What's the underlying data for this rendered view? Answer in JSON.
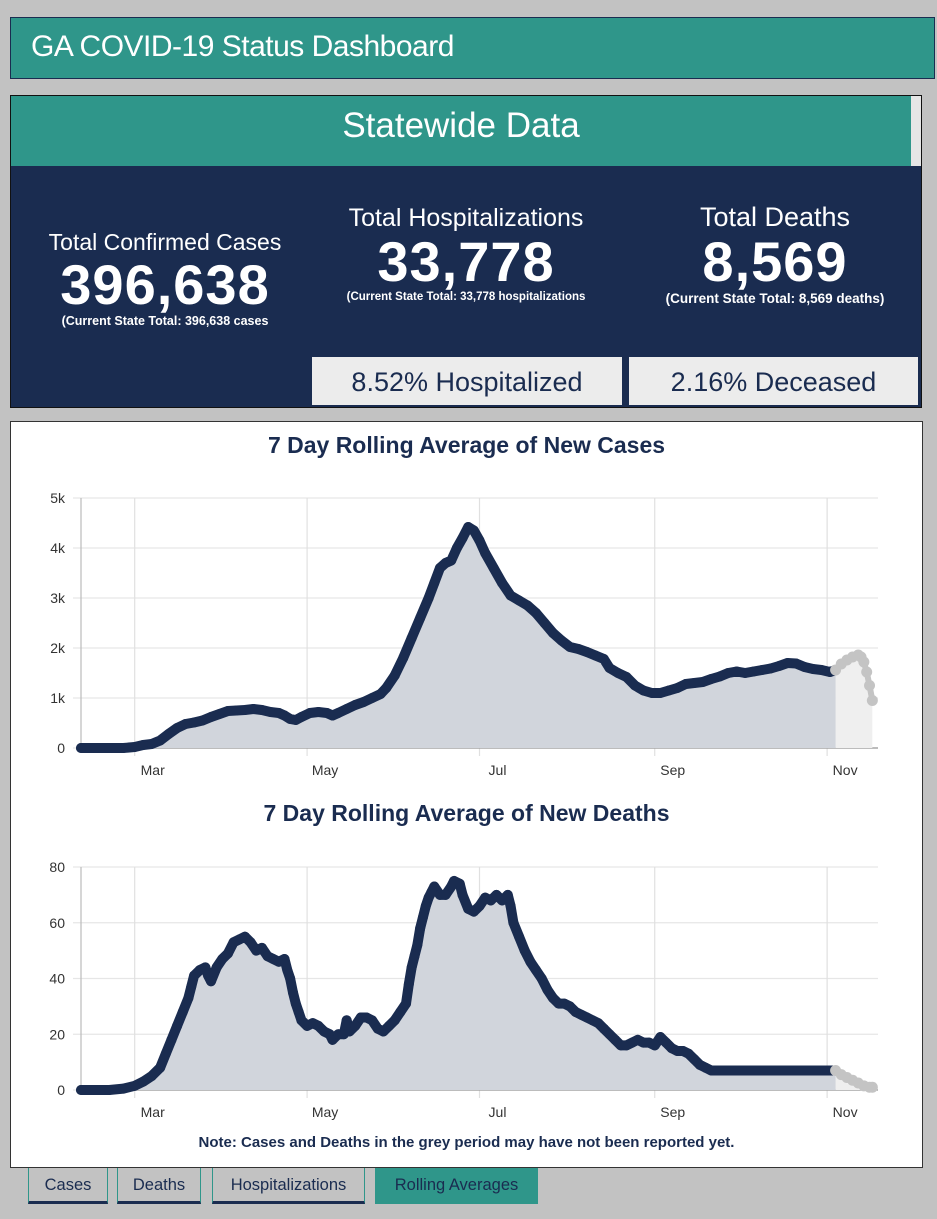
{
  "app": {
    "title": "GA COVID-19 Status Dashboard"
  },
  "statewide": {
    "header": "Statewide Data",
    "cases": {
      "label": "Total Confirmed Cases",
      "value": "396,638",
      "sub": "(Current State Total: 396,638 cases"
    },
    "hospitalizations": {
      "label": "Total Hospitalizations",
      "value": "33,778",
      "sub": "(Current State Total: 33,778 hospitalizations",
      "pct": "8.52% Hospitalized"
    },
    "deaths": {
      "label": "Total Deaths",
      "value": "8,569",
      "sub": "(Current State Total: 8,569 deaths)",
      "pct": "2.16% Deceased"
    }
  },
  "colors": {
    "teal": "#2f968a",
    "navy": "#1a2c50",
    "fill": "#d1d5dc",
    "grey_point": "#c4c4c4",
    "grey_fill": "#efefef"
  },
  "note": "Note: Cases and Deaths in the grey period may have not been reported yet.",
  "tabs": [
    {
      "label": "Cases",
      "active": false
    },
    {
      "label": "Deaths",
      "active": false
    },
    {
      "label": "Hospitalizations",
      "active": false
    },
    {
      "label": "Rolling Averages",
      "active": true
    }
  ],
  "chart_data": [
    {
      "type": "area",
      "title": "7 Day Rolling Average of New Cases",
      "xlabel": "",
      "ylabel": "",
      "x_unit": "days since Feb 10",
      "x_ticks": [
        {
          "label": "Mar",
          "x": 19
        },
        {
          "label": "May",
          "x": 80
        },
        {
          "label": "Jul",
          "x": 141
        },
        {
          "label": "Sep",
          "x": 203
        },
        {
          "label": "Nov",
          "x": 264
        }
      ],
      "xlim": [
        0,
        282
      ],
      "y_ticks": [
        {
          "label": "0",
          "y": 0
        },
        {
          "label": "1k",
          "y": 1000
        },
        {
          "label": "2k",
          "y": 2000
        },
        {
          "label": "3k",
          "y": 3000
        },
        {
          "label": "4k",
          "y": 4000
        },
        {
          "label": "5k",
          "y": 5000
        }
      ],
      "ylim": [
        0,
        5000
      ],
      "grey_period_start": 267,
      "points": [
        [
          0,
          0
        ],
        [
          5,
          0
        ],
        [
          10,
          0
        ],
        [
          15,
          0
        ],
        [
          19,
          20
        ],
        [
          22,
          60
        ],
        [
          25,
          80
        ],
        [
          28,
          150
        ],
        [
          31,
          280
        ],
        [
          34,
          400
        ],
        [
          37,
          480
        ],
        [
          40,
          510
        ],
        [
          43,
          550
        ],
        [
          46,
          620
        ],
        [
          49,
          680
        ],
        [
          52,
          740
        ],
        [
          55,
          750
        ],
        [
          58,
          760
        ],
        [
          61,
          780
        ],
        [
          64,
          760
        ],
        [
          67,
          720
        ],
        [
          70,
          700
        ],
        [
          72,
          650
        ],
        [
          74,
          580
        ],
        [
          76,
          560
        ],
        [
          78,
          620
        ],
        [
          81,
          700
        ],
        [
          84,
          720
        ],
        [
          87,
          700
        ],
        [
          89,
          650
        ],
        [
          91,
          700
        ],
        [
          94,
          780
        ],
        [
          97,
          860
        ],
        [
          100,
          920
        ],
        [
          103,
          1000
        ],
        [
          106,
          1080
        ],
        [
          108,
          1200
        ],
        [
          111,
          1450
        ],
        [
          114,
          1800
        ],
        [
          117,
          2200
        ],
        [
          120,
          2600
        ],
        [
          123,
          3000
        ],
        [
          125,
          3300
        ],
        [
          127,
          3600
        ],
        [
          129,
          3700
        ],
        [
          131,
          3750
        ],
        [
          133,
          4000
        ],
        [
          135,
          4200
        ],
        [
          137,
          4420
        ],
        [
          139,
          4350
        ],
        [
          141,
          4150
        ],
        [
          143,
          3900
        ],
        [
          146,
          3600
        ],
        [
          149,
          3300
        ],
        [
          152,
          3050
        ],
        [
          155,
          2950
        ],
        [
          158,
          2850
        ],
        [
          161,
          2700
        ],
        [
          164,
          2500
        ],
        [
          167,
          2300
        ],
        [
          170,
          2150
        ],
        [
          173,
          2020
        ],
        [
          176,
          1980
        ],
        [
          179,
          1920
        ],
        [
          182,
          1850
        ],
        [
          185,
          1780
        ],
        [
          187,
          1600
        ],
        [
          190,
          1500
        ],
        [
          193,
          1420
        ],
        [
          196,
          1250
        ],
        [
          199,
          1150
        ],
        [
          202,
          1100
        ],
        [
          205,
          1100
        ],
        [
          208,
          1150
        ],
        [
          211,
          1200
        ],
        [
          214,
          1280
        ],
        [
          217,
          1300
        ],
        [
          220,
          1320
        ],
        [
          223,
          1380
        ],
        [
          226,
          1430
        ],
        [
          229,
          1500
        ],
        [
          232,
          1530
        ],
        [
          235,
          1500
        ],
        [
          238,
          1530
        ],
        [
          241,
          1560
        ],
        [
          244,
          1590
        ],
        [
          247,
          1640
        ],
        [
          250,
          1700
        ],
        [
          253,
          1690
        ],
        [
          256,
          1620
        ],
        [
          259,
          1580
        ],
        [
          262,
          1560
        ],
        [
          265,
          1520
        ],
        [
          267,
          1560
        ],
        [
          269,
          1680
        ],
        [
          271,
          1760
        ],
        [
          273,
          1820
        ],
        [
          275,
          1860
        ],
        [
          276,
          1820
        ],
        [
          277,
          1720
        ],
        [
          278,
          1520
        ],
        [
          279,
          1250
        ],
        [
          280,
          950
        ]
      ]
    },
    {
      "type": "area",
      "title": "7 Day Rolling Average of New Deaths",
      "xlabel": "",
      "ylabel": "",
      "x_unit": "days since Feb 10",
      "x_ticks": [
        {
          "label": "Mar",
          "x": 19
        },
        {
          "label": "May",
          "x": 80
        },
        {
          "label": "Jul",
          "x": 141
        },
        {
          "label": "Sep",
          "x": 203
        },
        {
          "label": "Nov",
          "x": 264
        }
      ],
      "xlim": [
        0,
        282
      ],
      "y_ticks": [
        {
          "label": "0",
          "y": 0
        },
        {
          "label": "20",
          "y": 20
        },
        {
          "label": "40",
          "y": 40
        },
        {
          "label": "60",
          "y": 60
        },
        {
          "label": "80",
          "y": 80
        }
      ],
      "ylim": [
        0,
        80
      ],
      "grey_period_start": 267,
      "points": [
        [
          0,
          0
        ],
        [
          5,
          0
        ],
        [
          10,
          0
        ],
        [
          15,
          0.5
        ],
        [
          19,
          1.5
        ],
        [
          22,
          3
        ],
        [
          25,
          5
        ],
        [
          28,
          8
        ],
        [
          30,
          13
        ],
        [
          32,
          18
        ],
        [
          34,
          23
        ],
        [
          36,
          28
        ],
        [
          38,
          33
        ],
        [
          39,
          37
        ],
        [
          40,
          41
        ],
        [
          42,
          43
        ],
        [
          44,
          44
        ],
        [
          45,
          41
        ],
        [
          46,
          39
        ],
        [
          48,
          44
        ],
        [
          50,
          47
        ],
        [
          52,
          49
        ],
        [
          54,
          53
        ],
        [
          56,
          54
        ],
        [
          58,
          55
        ],
        [
          60,
          53
        ],
        [
          62,
          50
        ],
        [
          64,
          51
        ],
        [
          66,
          48
        ],
        [
          68,
          47
        ],
        [
          70,
          46
        ],
        [
          72,
          47
        ],
        [
          73,
          43
        ],
        [
          74,
          40
        ],
        [
          75,
          35
        ],
        [
          76,
          31
        ],
        [
          77,
          28
        ],
        [
          78,
          25
        ],
        [
          80,
          23
        ],
        [
          82,
          24
        ],
        [
          84,
          23
        ],
        [
          86,
          21
        ],
        [
          88,
          20
        ],
        [
          89,
          18
        ],
        [
          91,
          20
        ],
        [
          93,
          20
        ],
        [
          94,
          25
        ],
        [
          95,
          21
        ],
        [
          97,
          23
        ],
        [
          99,
          26
        ],
        [
          101,
          26
        ],
        [
          103,
          25
        ],
        [
          105,
          22
        ],
        [
          107,
          21
        ],
        [
          109,
          23
        ],
        [
          111,
          25
        ],
        [
          113,
          28
        ],
        [
          115,
          31
        ],
        [
          116,
          38
        ],
        [
          117,
          44
        ],
        [
          118,
          48
        ],
        [
          119,
          52
        ],
        [
          120,
          58
        ],
        [
          121,
          62
        ],
        [
          122,
          66
        ],
        [
          123,
          69
        ],
        [
          124,
          71
        ],
        [
          125,
          73
        ],
        [
          127,
          70
        ],
        [
          129,
          70
        ],
        [
          131,
          73
        ],
        [
          132,
          75
        ],
        [
          134,
          74
        ],
        [
          135,
          70
        ],
        [
          137,
          65
        ],
        [
          139,
          64
        ],
        [
          141,
          66
        ],
        [
          143,
          69
        ],
        [
          145,
          68
        ],
        [
          147,
          70
        ],
        [
          149,
          68
        ],
        [
          151,
          70
        ],
        [
          152,
          66
        ],
        [
          153,
          60
        ],
        [
          155,
          55
        ],
        [
          157,
          50
        ],
        [
          159,
          46
        ],
        [
          161,
          43
        ],
        [
          163,
          40
        ],
        [
          165,
          36
        ],
        [
          167,
          33
        ],
        [
          169,
          31
        ],
        [
          171,
          31
        ],
        [
          173,
          30
        ],
        [
          175,
          28
        ],
        [
          177,
          27
        ],
        [
          179,
          26
        ],
        [
          181,
          25
        ],
        [
          183,
          24
        ],
        [
          185,
          22
        ],
        [
          187,
          20
        ],
        [
          189,
          18
        ],
        [
          191,
          16
        ],
        [
          193,
          16
        ],
        [
          195,
          17
        ],
        [
          197,
          18
        ],
        [
          199,
          17
        ],
        [
          201,
          17
        ],
        [
          203,
          16
        ],
        [
          205,
          19
        ],
        [
          207,
          17
        ],
        [
          209,
          15
        ],
        [
          211,
          14
        ],
        [
          213,
          14
        ],
        [
          215,
          13
        ],
        [
          217,
          11
        ],
        [
          219,
          9
        ],
        [
          221,
          8
        ],
        [
          223,
          7
        ],
        [
          267,
          7
        ],
        [
          269,
          5.5
        ],
        [
          271,
          4.5
        ],
        [
          273,
          3.5
        ],
        [
          275,
          2.5
        ],
        [
          277,
          1.5
        ],
        [
          279,
          1
        ],
        [
          280,
          1
        ]
      ]
    }
  ]
}
